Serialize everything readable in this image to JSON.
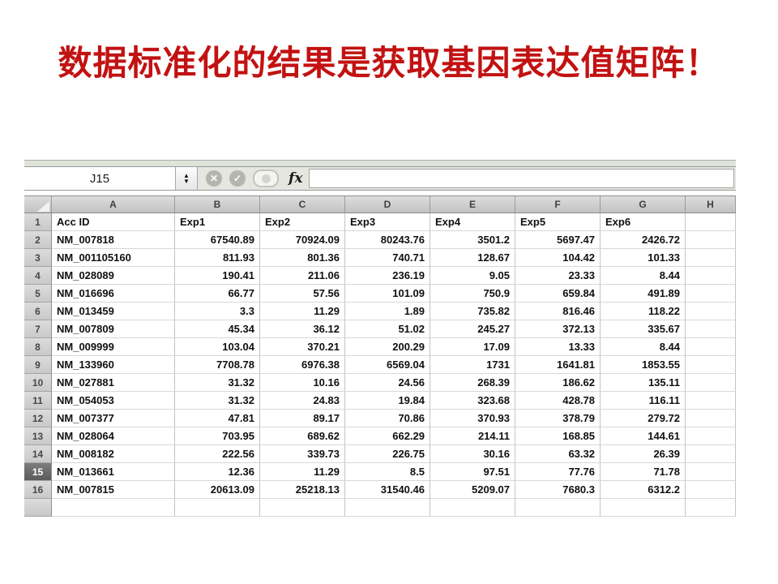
{
  "slide": {
    "title": "数据标准化的结果是获取基因表达值矩阵！",
    "title_color": "#c21212"
  },
  "spreadsheet": {
    "name_box_value": "J15",
    "formula_value": "",
    "fx_label": "fx",
    "icons": {
      "stepper_up": "▲",
      "stepper_down": "▼",
      "cancel": "✕",
      "accept": "✓"
    },
    "selected_row": "15",
    "column_headers": [
      "A",
      "B",
      "C",
      "D",
      "E",
      "F",
      "G",
      "H"
    ],
    "rows": [
      {
        "num": "1",
        "header": true,
        "cells": [
          "Acc ID",
          "Exp1",
          "Exp2",
          "Exp3",
          "Exp4",
          "Exp5",
          "Exp6",
          ""
        ]
      },
      {
        "num": "2",
        "cells": [
          "NM_007818",
          "67540.89",
          "70924.09",
          "80243.76",
          "3501.2",
          "5697.47",
          "2426.72",
          ""
        ]
      },
      {
        "num": "3",
        "cells": [
          "NM_001105160",
          "811.93",
          "801.36",
          "740.71",
          "128.67",
          "104.42",
          "101.33",
          ""
        ]
      },
      {
        "num": "4",
        "cells": [
          "NM_028089",
          "190.41",
          "211.06",
          "236.19",
          "9.05",
          "23.33",
          "8.44",
          ""
        ]
      },
      {
        "num": "5",
        "cells": [
          "NM_016696",
          "66.77",
          "57.56",
          "101.09",
          "750.9",
          "659.84",
          "491.89",
          ""
        ]
      },
      {
        "num": "6",
        "cells": [
          "NM_013459",
          "3.3",
          "11.29",
          "1.89",
          "735.82",
          "816.46",
          "118.22",
          ""
        ]
      },
      {
        "num": "7",
        "cells": [
          "NM_007809",
          "45.34",
          "36.12",
          "51.02",
          "245.27",
          "372.13",
          "335.67",
          ""
        ]
      },
      {
        "num": "8",
        "cells": [
          "NM_009999",
          "103.04",
          "370.21",
          "200.29",
          "17.09",
          "13.33",
          "8.44",
          ""
        ]
      },
      {
        "num": "9",
        "cells": [
          "NM_133960",
          "7708.78",
          "6976.38",
          "6569.04",
          "1731",
          "1641.81",
          "1853.55",
          ""
        ]
      },
      {
        "num": "10",
        "cells": [
          "NM_027881",
          "31.32",
          "10.16",
          "24.56",
          "268.39",
          "186.62",
          "135.11",
          ""
        ]
      },
      {
        "num": "11",
        "cells": [
          "NM_054053",
          "31.32",
          "24.83",
          "19.84",
          "323.68",
          "428.78",
          "116.11",
          ""
        ]
      },
      {
        "num": "12",
        "cells": [
          "NM_007377",
          "47.81",
          "89.17",
          "70.86",
          "370.93",
          "378.79",
          "279.72",
          ""
        ]
      },
      {
        "num": "13",
        "cells": [
          "NM_028064",
          "703.95",
          "689.62",
          "662.29",
          "214.11",
          "168.85",
          "144.61",
          ""
        ]
      },
      {
        "num": "14",
        "cells": [
          "NM_008182",
          "222.56",
          "339.73",
          "226.75",
          "30.16",
          "63.32",
          "26.39",
          ""
        ]
      },
      {
        "num": "15",
        "cells": [
          "NM_013661",
          "12.36",
          "11.29",
          "8.5",
          "97.51",
          "77.76",
          "71.78",
          ""
        ]
      },
      {
        "num": "16",
        "cells": [
          "NM_007815",
          "20613.09",
          "25218.13",
          "31540.46",
          "5209.07",
          "7680.3",
          "6312.2",
          ""
        ]
      },
      {
        "num": "",
        "partial": true,
        "cells": [
          "",
          "",
          "",
          "",
          "",
          "",
          "",
          ""
        ]
      }
    ]
  }
}
